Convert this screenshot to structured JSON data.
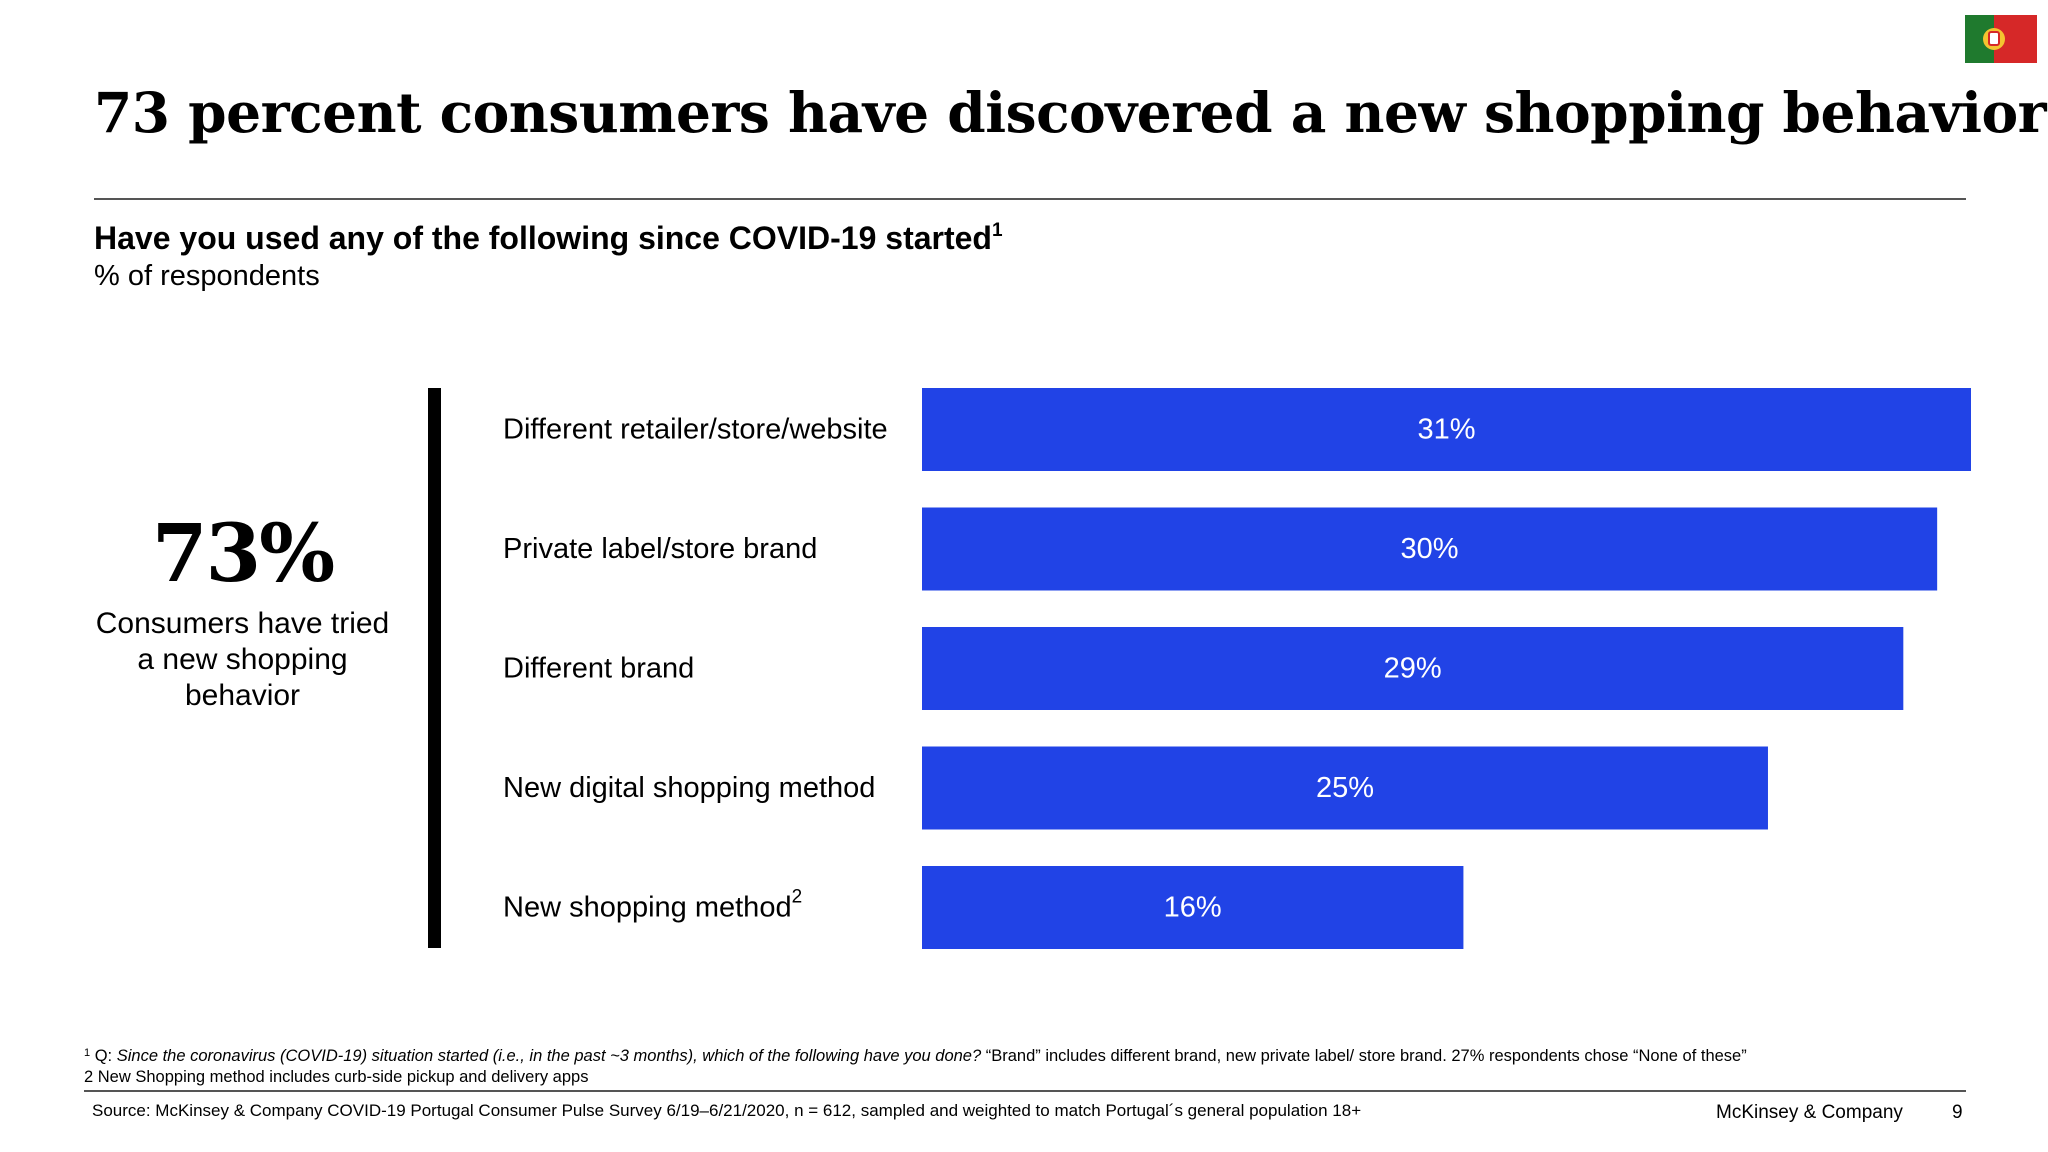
{
  "title": "73 percent consumers have discovered a new shopping behavior",
  "subtitle": "Have you used any of the following since COVID-19 started",
  "subtitle_superscript": "1",
  "unit_label": "% of respondents",
  "kpi": {
    "value": "73%",
    "caption": "Consumers have tried a new shopping behavior"
  },
  "flag_icon": "portugal-flag-icon",
  "colors": {
    "bar": "#2143e6",
    "bar_label": "#ffffff"
  },
  "chart_data": {
    "type": "bar",
    "orientation": "horizontal",
    "categories": [
      "Different retailer/store/website",
      "Private label/store brand",
      "Different brand",
      "New digital shopping method",
      "New shopping method"
    ],
    "category_superscripts": [
      "",
      "",
      "",
      "",
      "2"
    ],
    "values": [
      31,
      30,
      29,
      25,
      16
    ],
    "value_labels": [
      "31%",
      "30%",
      "29%",
      "25%",
      "16%"
    ],
    "xlim": [
      0,
      31
    ],
    "grid": false,
    "legend": "none"
  },
  "footnotes": {
    "fn1_marker": "1",
    "fn1_prefix": "Q: ",
    "fn1_question": "Since the coronavirus (COVID-19) situation started (i.e., in the past ~3 months), which of the following have you done?",
    "fn1_rest": " “Brand” includes different brand, new private label/ store brand. 27% respondents chose “None of these”",
    "fn2": "2 New Shopping method includes curb-side pickup and delivery apps"
  },
  "source": "Source: McKinsey & Company COVID-19 Portugal Consumer Pulse Survey 6/19–6/21/2020, n = 612, sampled and weighted to match Portugal´s general population 18+",
  "brand": "McKinsey & Company",
  "page_number": "9"
}
